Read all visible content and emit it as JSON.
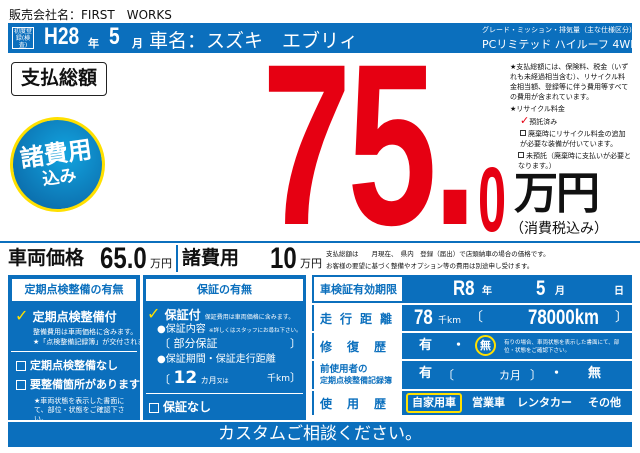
{
  "seller": {
    "label": "販売会社名：FIRST　WORKS"
  },
  "header": {
    "first_reg": "初度登録(検査)",
    "year": "H28",
    "year_unit": "年",
    "month": "5",
    "month_unit": "月",
    "car_name": "車名：スズキ　エブリィ",
    "grade_label": "グレード・ミッション・排気量（主な仕様区分）",
    "grade": "PCリミテッド ハイルーフ 4WD"
  },
  "total": {
    "label": "支払総額",
    "badge_line1": "諸費用",
    "badge_line2": "込み",
    "big": "75.",
    "decimal": "0",
    "unit": "万円",
    "tax": "（消費税込み）",
    "note": "★支払総額には、保険料、税金（いずれも未経過相当含む）、リサイクル料金相当額、登録等に伴う費用等すべての費用が含まれています。",
    "recycle_title": "★リサイクル料金",
    "recycle_paid": "預託済み",
    "recycle_extra": "廃棄時にリサイクル料金の追加が必要な装備が付いています。",
    "recycle_unpaid": "未預託（廃棄時に支払いが必要となります。）"
  },
  "prices": {
    "vehicle_label": "車両価格",
    "vehicle_value": "65.0",
    "vehicle_unit": "万円",
    "fees_label": "諸費用",
    "fees_value": "10",
    "fees_unit": "万円",
    "note1": "支払総額は　　月現在、　県内　登録（届出）で店頭納車の場合の価格です。",
    "note2": "お客様の要望に基づく整備やオプション等の費用は別途申し受けます。"
  },
  "inspection": {
    "title": "定期点検整備の有無",
    "with": "定期点検整備付",
    "with_note1": "整備費用は車両価格に含みます。",
    "with_note2": "★「点検整備記録簿」が交付されます。",
    "without": "定期点検整備なし",
    "needs": "要整備箇所があります",
    "needs_note": "★車両状態を表示した書面にて、部位・状態をご確認下さい。"
  },
  "warranty": {
    "title": "保証の有無",
    "with": "保証付",
    "with_note": "保証費用は車両価格に含みます。",
    "content_label": "●保証内容",
    "content_note": "※詳しくはスタッフにお尋ね下さい。",
    "content": "部分保証",
    "period_label": "●保証期間・保証走行距離",
    "months": "12",
    "months_unit": "カ月",
    "or": "又は",
    "km_unit": "千km",
    "without": "保証なし"
  },
  "specs": {
    "inspection_label": "車検証有効期限",
    "insp_year": "R8",
    "insp_year_unit": "年",
    "insp_month": "5",
    "insp_month_unit": "月",
    "insp_day_unit": "日",
    "mileage_label": "走行距離",
    "mileage": "78",
    "mileage_unit": "千km",
    "mileage_exact": "78000km",
    "repair_label": "修復歴",
    "repair_yes": "有",
    "repair_no": "無",
    "repair_note": "有りの場合、車両状態を表示した書面にて、部位・状態をご確認下さい。",
    "record_label1": "前使用者の",
    "record_label2": "定期点検整備記録簿",
    "record_yes": "有",
    "record_months": "カ月",
    "record_no": "無",
    "usage_label": "使用歴",
    "usage": [
      "自家用車",
      "営業車",
      "レンタカー",
      "その他"
    ],
    "usage_selected": "自家用車"
  },
  "footer": {
    "text": "カスタムご相談ください。"
  },
  "colors": {
    "blue": "#0b6fbd",
    "red": "#e60012",
    "highlight": "#ffe000"
  }
}
